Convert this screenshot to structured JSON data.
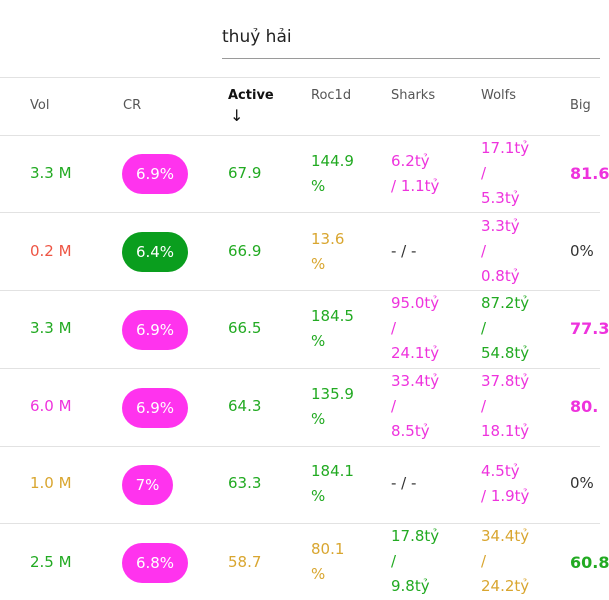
{
  "search": {
    "value": "thuỷ hải"
  },
  "colors": {
    "green": "#22aa22",
    "red": "#ee5544",
    "pink": "#ee33dd",
    "orange": "#d9a630",
    "pill_pink": "#ff33ee",
    "pill_green": "#0a9e1e"
  },
  "table": {
    "headers": {
      "vol": "Vol",
      "cr": "CR",
      "active": "Active",
      "active_sort_icon": "arrow-down-icon",
      "roc1d": "Roc1d",
      "sharks": "Sharks",
      "wolfs": "Wolfs",
      "big": "Big"
    },
    "rows": [
      {
        "vol": "3.3 M",
        "cr": "6.9%",
        "active": "67.9",
        "roc1d": [
          "144.9",
          "%"
        ],
        "sharks": [
          "6.2tỷ",
          "/ 1.1tỷ"
        ],
        "wolfs": [
          "17.1tỷ",
          "/",
          "5.3tỷ"
        ],
        "big": "81.6"
      },
      {
        "vol": "0.2 M",
        "cr": "6.4%",
        "active": "66.9",
        "roc1d": [
          "13.6",
          "%"
        ],
        "sharks": [
          "- / -"
        ],
        "wolfs": [
          "3.3tỷ",
          "/",
          "0.8tỷ"
        ],
        "big": "0%"
      },
      {
        "vol": "3.3 M",
        "cr": "6.9%",
        "active": "66.5",
        "roc1d": [
          "184.5",
          "%"
        ],
        "sharks": [
          "95.0tỷ",
          "/",
          "24.1tỷ"
        ],
        "wolfs": [
          "87.2tỷ",
          "/",
          "54.8tỷ"
        ],
        "big": "77.3"
      },
      {
        "vol": "6.0 M",
        "cr": "6.9%",
        "active": "64.3",
        "roc1d": [
          "135.9",
          "%"
        ],
        "sharks": [
          "33.4tỷ",
          "/",
          "8.5tỷ"
        ],
        "wolfs": [
          "37.8tỷ",
          "/",
          "18.1tỷ"
        ],
        "big": "80."
      },
      {
        "vol": "1.0 M",
        "cr": "7%",
        "active": "63.3",
        "roc1d": [
          "184.1",
          "%"
        ],
        "sharks": [
          "- / -"
        ],
        "wolfs": [
          "4.5tỷ",
          "/ 1.9tỷ"
        ],
        "big": "0%"
      },
      {
        "vol": "2.5 M",
        "cr": "6.8%",
        "active": "58.7",
        "roc1d": [
          "80.1",
          "%"
        ],
        "sharks": [
          "17.8tỷ",
          "/",
          "9.8tỷ"
        ],
        "wolfs": [
          "34.4tỷ",
          "/",
          "24.2tỷ"
        ],
        "big": "60.8"
      }
    ]
  }
}
